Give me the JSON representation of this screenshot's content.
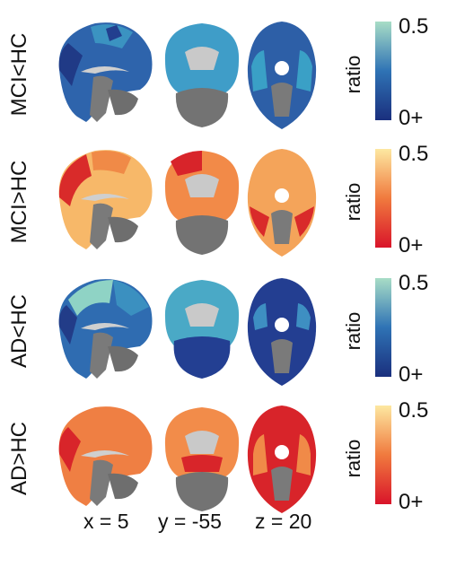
{
  "rows": [
    {
      "label": "MCI<HC",
      "scale": "cool",
      "cbar_title": "ratio",
      "cbar_max": "0.5",
      "cbar_min": "0+"
    },
    {
      "label": "MCI>HC",
      "scale": "warm",
      "cbar_title": "ratio",
      "cbar_max": "0.5",
      "cbar_min": "0+"
    },
    {
      "label": "AD<HC",
      "scale": "cool",
      "cbar_title": "ratio",
      "cbar_max": "0.5",
      "cbar_min": "0+"
    },
    {
      "label": "AD>HC",
      "scale": "warm",
      "cbar_title": "ratio",
      "cbar_max": "0.5",
      "cbar_min": "0+"
    }
  ],
  "coords": {
    "x": "x = 5",
    "y": "y = -55",
    "z": "z = 20"
  },
  "colors": {
    "cool_low": "#1a2f7e",
    "cool_mid": "#2f73b5",
    "cool_high": "#a8ddc6",
    "warm_low": "#d9142a",
    "warm_mid": "#f07a3e",
    "warm_high": "#fde8a1",
    "tissue": "#8a8a8a",
    "white_matter": "#c8c8c8"
  }
}
